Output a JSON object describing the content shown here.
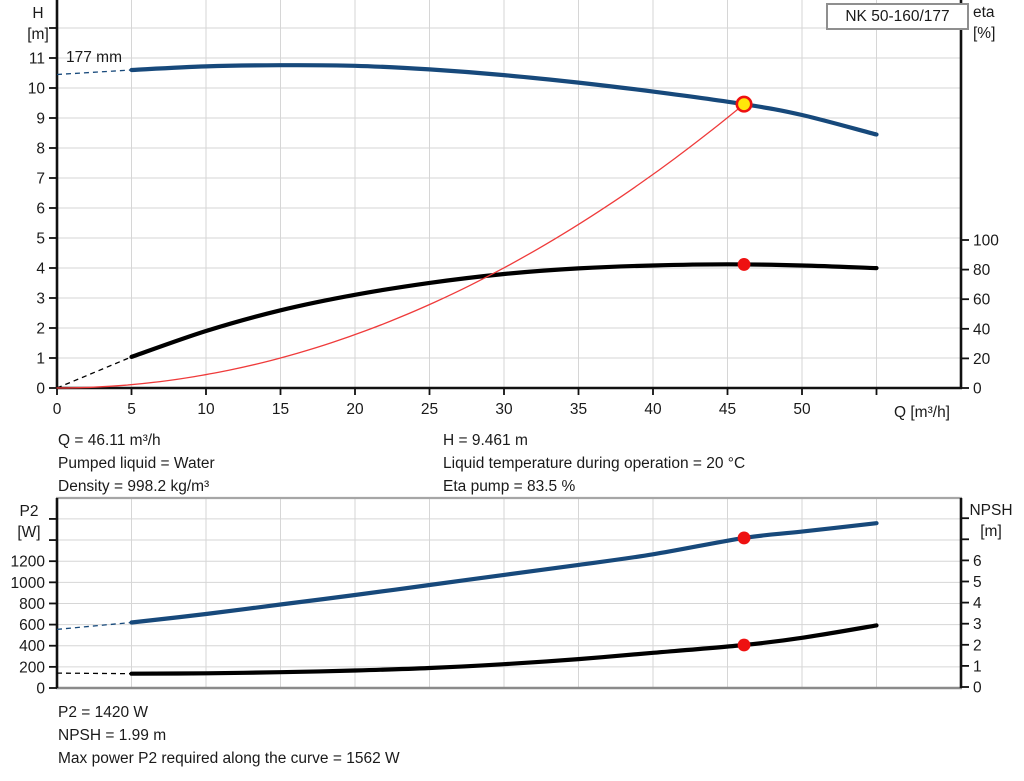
{
  "title_box": {
    "label": "NK 50-160/177"
  },
  "labels": {
    "top_left_axis": [
      "H",
      "[m]"
    ],
    "top_right_axis": [
      "eta",
      "[%]"
    ],
    "x_axis": "Q [m³/h]",
    "impeller": "177 mm",
    "bottom_left_axis": [
      "P2",
      "[W]"
    ],
    "bottom_right_axis": [
      "NPSH",
      "[m]"
    ]
  },
  "info_top_left": [
    "Q = 46.11 m³/h",
    "Pumped liquid = Water",
    "Density = 998.2 kg/m³"
  ],
  "info_top_right": [
    "H = 9.461 m",
    "Liquid temperature during operation = 20 °C",
    "Eta pump = 83.5 %"
  ],
  "info_bottom": [
    "P2 = 1420 W",
    "NPSH = 1.99 m",
    "Max power P2 required along the curve = 1562 W"
  ],
  "colors": {
    "curve_blue": "#17497b",
    "curve_black": "#000000",
    "system_red": "#ef3b3b",
    "dot_red": "#ee1111",
    "duty_yellow": "#ffe70a",
    "grid": "#d6d6d6",
    "axis": "#111111",
    "frame_top_gray": "#a6a6a6",
    "frame_bottom_gray": "#8a8a8a",
    "text": "#1a1a1a"
  },
  "chart_data": [
    {
      "type": "line",
      "title": "NK 50-160/177",
      "xlabel": "Q [m³/h]",
      "xlim": [
        0,
        60.7
      ],
      "x_ticks": [
        0,
        5,
        10,
        15,
        20,
        25,
        30,
        35,
        40,
        45,
        50,
        55
      ],
      "x_tick_label_max": 50,
      "x_gridlines": [
        5,
        10,
        15,
        20,
        25,
        30,
        35,
        40,
        45,
        50,
        55
      ],
      "left_axis": {
        "label": "H [m]",
        "ylim": [
          0,
          12.9
        ],
        "ticks": [
          0,
          1,
          2,
          3,
          4,
          5,
          6,
          7,
          8,
          9,
          10,
          11
        ],
        "unlabeled_ticks": [
          12
        ],
        "gridlines": [
          1,
          2,
          3,
          4,
          5,
          6,
          7,
          8,
          9,
          10,
          11,
          12
        ]
      },
      "right_axis": {
        "label": "eta [%]",
        "ylim": [
          0,
          100
        ],
        "ticks": [
          0,
          20,
          40,
          60,
          80,
          100
        ],
        "unlabeled_ticks": []
      },
      "series": [
        {
          "name": "head-curve-177mm",
          "label": "177 mm",
          "axis": "H",
          "color_key": "curve_blue",
          "width": 4.2,
          "dashed": [
            [
              0,
              10.45
            ],
            [
              5,
              10.6
            ]
          ],
          "points": [
            [
              5,
              10.6
            ],
            [
              10,
              10.72
            ],
            [
              15,
              10.76
            ],
            [
              20,
              10.74
            ],
            [
              25,
              10.62
            ],
            [
              30,
              10.43
            ],
            [
              35,
              10.18
            ],
            [
              40,
              9.88
            ],
            [
              46.11,
              9.461
            ],
            [
              50,
              9.1
            ],
            [
              55,
              8.45
            ]
          ]
        },
        {
          "name": "efficiency-curve",
          "axis": "eta",
          "color_key": "curve_black",
          "width": 4.2,
          "dashed": [
            [
              0,
              0
            ],
            [
              5,
              21
            ]
          ],
          "points": [
            [
              5,
              21
            ],
            [
              10,
              38.5
            ],
            [
              15,
              52.5
            ],
            [
              20,
              63
            ],
            [
              25,
              71
            ],
            [
              30,
              77
            ],
            [
              35,
              80.8
            ],
            [
              40,
              82.8
            ],
            [
              45,
              83.6
            ],
            [
              50,
              82.8
            ],
            [
              55,
              81
            ]
          ]
        },
        {
          "name": "system-curve",
          "axis": "H",
          "color_key": "system_red",
          "width": 1.3,
          "parabola_to": [
            46.11,
            9.461
          ],
          "points": []
        }
      ],
      "markers": [
        {
          "name": "duty-point",
          "axis": "H",
          "at": [
            46.11,
            9.461
          ],
          "style": "duty"
        },
        {
          "name": "efficiency-point",
          "axis": "eta",
          "at": [
            46.11,
            83.5
          ],
          "style": "dot"
        }
      ]
    },
    {
      "type": "line",
      "xlabel": "",
      "xlim": [
        0,
        60.7
      ],
      "x_ticks": [],
      "x_tick_label_max": -1,
      "x_gridlines": [
        5,
        10,
        15,
        20,
        25,
        30,
        35,
        40,
        45,
        50,
        55
      ],
      "left_axis": {
        "label": "P2 [W]",
        "ylim": [
          0,
          1795
        ],
        "ticks": [
          0,
          200,
          400,
          600,
          800,
          1000,
          1200
        ],
        "unlabeled_ticks": [
          1400,
          1600
        ],
        "gridlines": [
          200,
          400,
          600,
          800,
          1000,
          1200,
          1400,
          1600
        ]
      },
      "right_axis": {
        "label": "NPSH [m]",
        "ylim": [
          0,
          8.9
        ],
        "ticks": [
          0,
          1,
          2,
          3,
          4,
          5,
          6
        ],
        "unlabeled_ticks": [
          7,
          8
        ]
      },
      "series": [
        {
          "name": "p2-curve",
          "axis": "P2",
          "color_key": "curve_blue",
          "width": 4.2,
          "dashed": [
            [
              0,
              555
            ],
            [
              5,
              620
            ]
          ],
          "points": [
            [
              5,
              620
            ],
            [
              10,
              700
            ],
            [
              15,
              790
            ],
            [
              20,
              880
            ],
            [
              25,
              975
            ],
            [
              30,
              1070
            ],
            [
              35,
              1165
            ],
            [
              40,
              1265
            ],
            [
              46.11,
              1420
            ],
            [
              50,
              1480
            ],
            [
              55,
              1560
            ]
          ]
        },
        {
          "name": "npsh-curve",
          "axis": "NPSH",
          "color_key": "curve_black",
          "width": 4.2,
          "dashed": [
            [
              0,
              0.66
            ],
            [
              5,
              0.63
            ]
          ],
          "points": [
            [
              5,
              0.63
            ],
            [
              10,
              0.65
            ],
            [
              15,
              0.7
            ],
            [
              20,
              0.78
            ],
            [
              25,
              0.9
            ],
            [
              30,
              1.08
            ],
            [
              35,
              1.32
            ],
            [
              40,
              1.62
            ],
            [
              46.11,
              1.99
            ],
            [
              50,
              2.33
            ],
            [
              55,
              2.92
            ]
          ]
        }
      ],
      "markers": [
        {
          "name": "p2-point",
          "axis": "P2",
          "at": [
            46.11,
            1420
          ],
          "style": "dot"
        },
        {
          "name": "npsh-point",
          "axis": "NPSH",
          "at": [
            46.11,
            1.99
          ],
          "style": "dot"
        }
      ]
    }
  ]
}
